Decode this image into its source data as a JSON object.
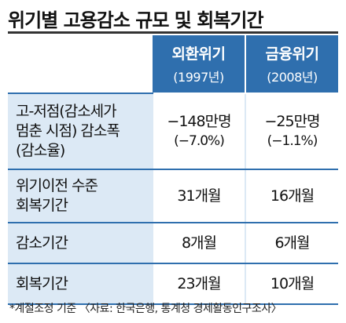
{
  "title": "위기별 고용감소 규모 및 회복기간",
  "columns": [
    {
      "name": "외환위기",
      "year": "(1997년)"
    },
    {
      "name": "금융위기",
      "year": "(2008년)"
    }
  ],
  "rows": [
    {
      "label_lines": [
        "고-저점(감소세가",
        "멈춘 시점) 감소폭",
        "(감소율)"
      ],
      "values": [
        {
          "main": "−148만명",
          "sub": "(−7.0%)"
        },
        {
          "main": "−25만명",
          "sub": "(−1.1%)"
        }
      ]
    },
    {
      "label_lines": [
        "위기이전 수준",
        "회복기간"
      ],
      "values": [
        {
          "main": "31개월"
        },
        {
          "main": "16개월"
        }
      ]
    },
    {
      "label_lines": [
        "감소기간"
      ],
      "values": [
        {
          "main": "8개월"
        },
        {
          "main": "6개월"
        }
      ]
    },
    {
      "label_lines": [
        "회복기간"
      ],
      "values": [
        {
          "main": "23개월"
        },
        {
          "main": "10개월"
        }
      ]
    }
  ],
  "footnote": "*계절조정 기준 〈자료: 한국은행, 통계청 경제활동인구조사〉",
  "colors": {
    "header_blue": "#2f6fae",
    "label_bg": "#dce9f5"
  }
}
